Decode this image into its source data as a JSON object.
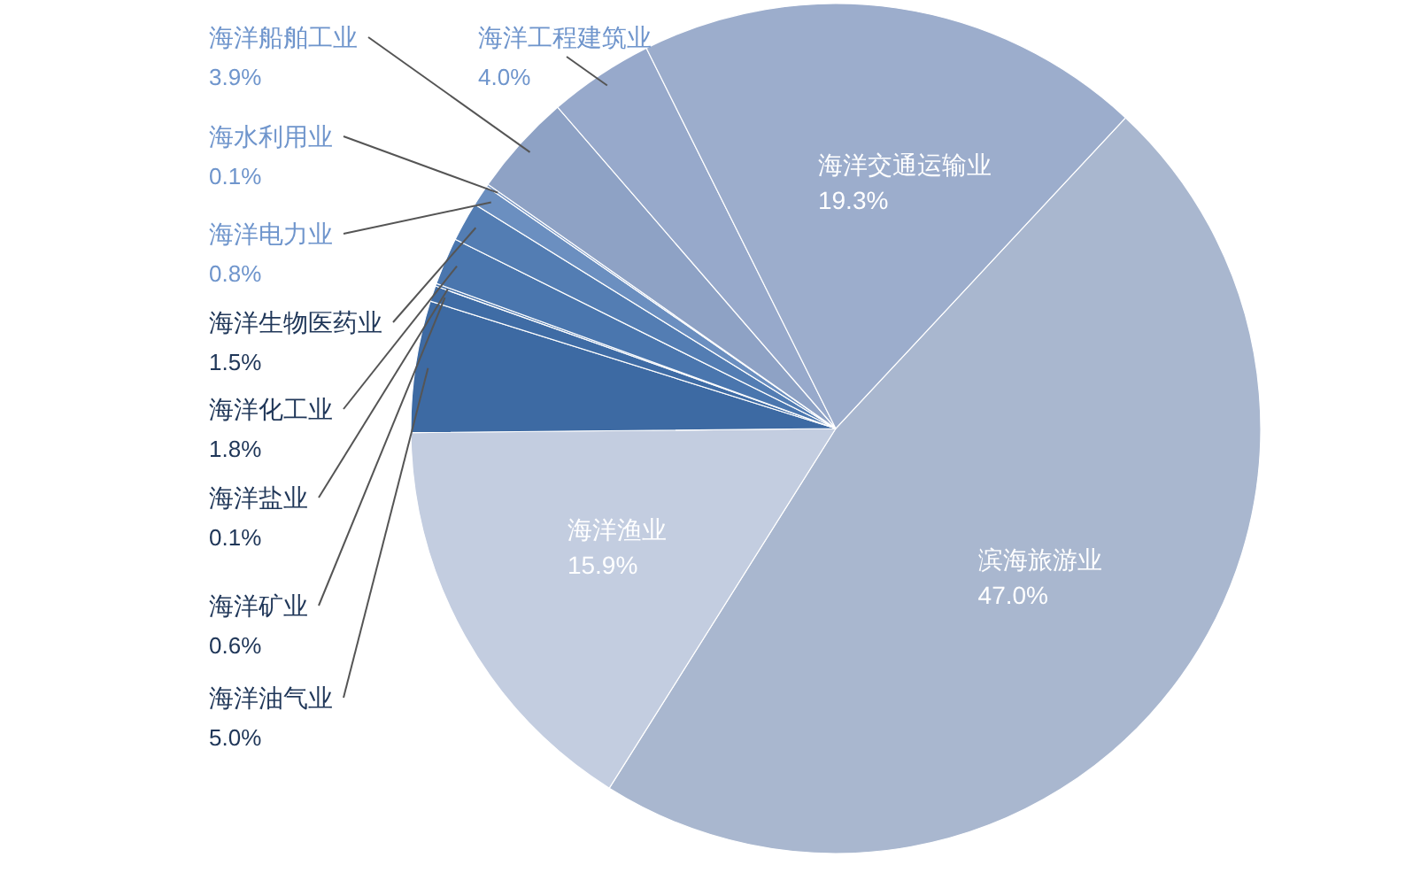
{
  "chart_data": {
    "type": "pie",
    "categories": [
      "滨海旅游业",
      "海洋渔业",
      "海洋油气业",
      "海洋矿业",
      "海洋盐业",
      "海洋化工业",
      "海洋生物医药业",
      "海洋电力业",
      "海水利用业",
      "海洋船舶工业",
      "海洋工程建筑业",
      "海洋交通运输业"
    ],
    "values": [
      47.0,
      15.9,
      5.0,
      0.6,
      0.1,
      1.8,
      1.5,
      0.8,
      0.1,
      3.9,
      4.0,
      19.3
    ],
    "value_labels": [
      "47.0%",
      "15.9%",
      "5.0%",
      "0.6%",
      "0.1%",
      "1.8%",
      "1.5%",
      "0.8%",
      "0.1%",
      "3.9%",
      "4.0%",
      "19.3%"
    ],
    "colors": [
      "#a9b7cf",
      "#c3cde0",
      "#3d6aa3",
      "#3f6ca5",
      "#4672ab",
      "#4a76ae",
      "#537db3",
      "#6b8fc0",
      "#7896c4",
      "#8ea2c5",
      "#97a9cb",
      "#9cadcc"
    ]
  }
}
